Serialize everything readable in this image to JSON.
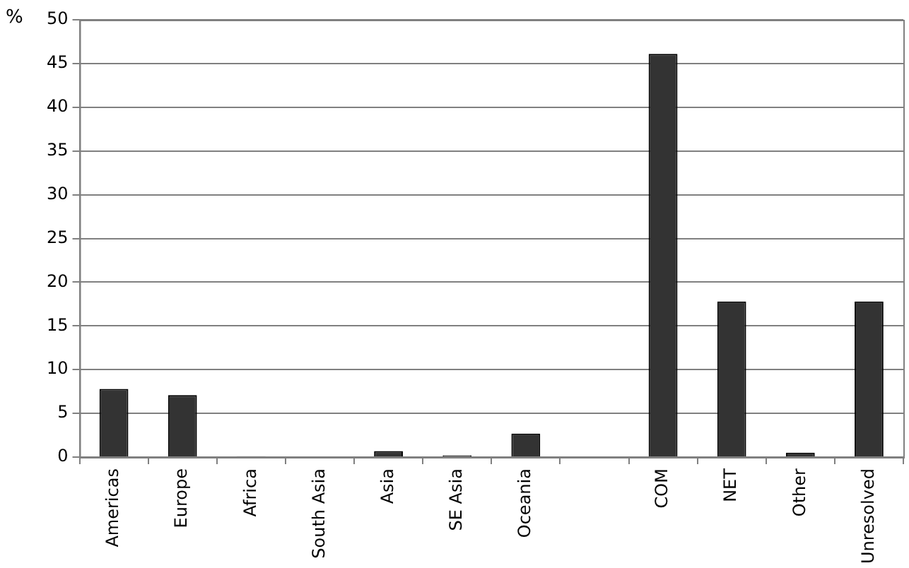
{
  "chart_data": {
    "type": "bar",
    "ylabel": "%",
    "categories": [
      "Americas",
      "Europe",
      "Africa",
      "South Asia",
      "Asia",
      "SE Asia",
      "Oceania",
      null,
      "COM",
      "NET",
      "Other",
      "Unresolved"
    ],
    "values": [
      7.8,
      7.1,
      0.1,
      0,
      0.7,
      0.2,
      2.7,
      null,
      46.1,
      17.8,
      0.5,
      17.8
    ],
    "color": "#333333",
    "ylim": [
      0,
      50
    ],
    "yticks": [
      0,
      5,
      10,
      15,
      20,
      25,
      30,
      35,
      40,
      45,
      50
    ],
    "grid": "y"
  }
}
